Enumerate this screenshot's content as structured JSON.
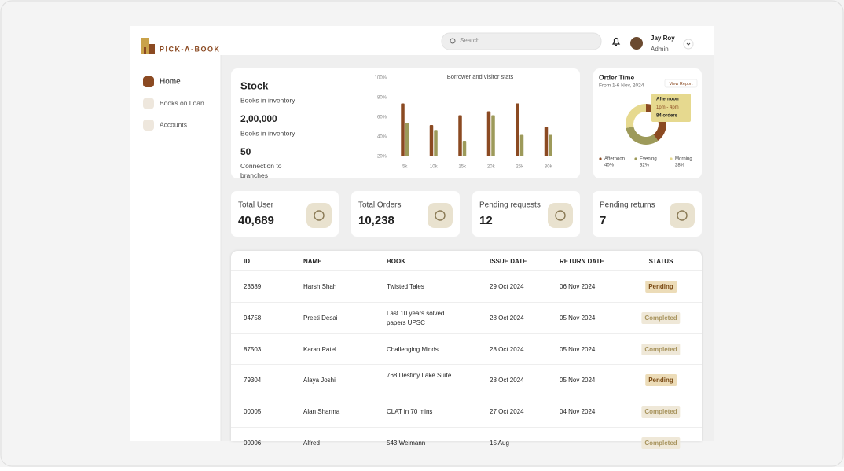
{
  "brand": "PICK-A-BOOK",
  "header": {
    "search_placeholder": "Search",
    "user_name": "Jay Roy",
    "user_role": "Admin"
  },
  "nav": [
    "Home",
    "Books on Loan",
    "Accounts"
  ],
  "stock": {
    "title": "Stock",
    "subtitle": "Books in inventory",
    "stats": [
      {
        "value": "2,00,000",
        "label": "Books in inventory"
      },
      {
        "value": "50",
        "label": "Connection to branches"
      }
    ]
  },
  "chart_data": [
    {
      "type": "bar",
      "title": "Borrower and visitor stats",
      "categories": [
        "5k",
        "10k",
        "15k",
        "20k",
        "25k",
        "30k"
      ],
      "series": [
        {
          "color": "#8b4a22",
          "values": [
            74,
            52,
            62,
            66,
            74,
            50
          ]
        },
        {
          "color": "#9d9a5a",
          "values": [
            54,
            47,
            36,
            62,
            42,
            42
          ]
        }
      ],
      "ylim": [
        20,
        100
      ],
      "yticks": [
        {
          "value": 20,
          "label": "20%"
        },
        {
          "value": 40,
          "label": "40%"
        },
        {
          "value": 60,
          "label": "60%"
        },
        {
          "value": 80,
          "label": "80%"
        },
        {
          "value": 100,
          "label": "100%"
        }
      ]
    },
    {
      "type": "pie",
      "title": "Order Time",
      "subtitle": "From 1-6 Nov, 2024",
      "categories": [
        "Afternoon",
        "Evening",
        "Morning"
      ],
      "values": [
        40,
        32,
        28
      ],
      "value_labels": [
        "40%",
        "32%",
        "28%"
      ],
      "colors": [
        "#8b4a22",
        "#9d9a5a",
        "#e6d98f"
      ],
      "tooltip": [
        "Afternoon",
        "1pm - 4pm",
        "84 orders"
      ],
      "button": "View Report"
    }
  ],
  "cards": [
    {
      "label": "Total User",
      "value": "40,689"
    },
    {
      "label": "Total Orders",
      "value": "10,238"
    },
    {
      "label": "Pending requests",
      "value": "12"
    },
    {
      "label": "Pending returns",
      "value": "7"
    }
  ],
  "table": {
    "columns": [
      "ID",
      "NAME",
      "BOOK",
      "ISSUE DATE",
      "RETURN DATE",
      "STATUS"
    ],
    "rows": [
      {
        "id": "23689",
        "name": "Harsh Shah",
        "book": "Twisted Tales",
        "issue_date": "29 Oct 2024",
        "return_date": "06 Nov 2024",
        "status": "Pending"
      },
      {
        "id": "94758",
        "name": "Preeti Desai",
        "book": "Last 10 years solved papers UPSC",
        "issue_date": "28 Oct 2024",
        "return_date": "05 Nov 2024",
        "status": "Completed"
      },
      {
        "id": "87503",
        "name": "Karan Patel",
        "book": "Challenging Minds",
        "issue_date": "28 Oct 2024",
        "return_date": "05 Nov 2024",
        "status": "Completed"
      },
      {
        "id": "79304",
        "name": "Alaya Joshi",
        "book": "768 Destiny Lake Suite",
        "issue_date": "28 Oct 2024",
        "return_date": "05 Nov 2024",
        "status": "Pending"
      },
      {
        "id": "00005",
        "name": "Alan Sharma",
        "book": "CLAT in 70 mins",
        "issue_date": "27 Oct 2024",
        "return_date": "04 Nov 2024",
        "status": "Completed"
      },
      {
        "id": "00006",
        "name": "Alfred",
        "book": "543 Weimann",
        "issue_date": "15 Aug",
        "status": "Completed"
      }
    ]
  }
}
